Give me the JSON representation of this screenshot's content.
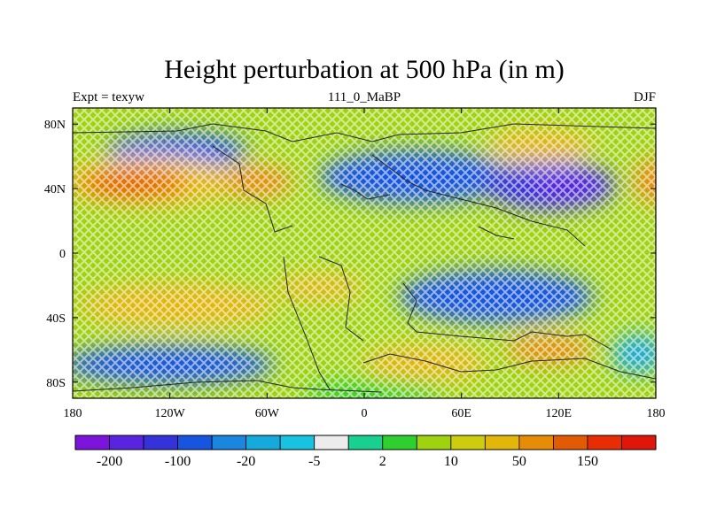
{
  "header": {
    "title": "Height perturbation at 500 hPa (in m)",
    "left_label": "Expt = texyw",
    "center_label": "111_0_MaBP",
    "right_label": "DJF"
  },
  "map": {
    "lon_ticks": [
      "180",
      "120W",
      "60W",
      "0",
      "60E",
      "120E",
      "180"
    ],
    "lat_ticks": [
      "80N",
      "40N",
      "0",
      "40S",
      "80S"
    ],
    "fill_pattern": "diamond-cross-hatch"
  },
  "colorbar": {
    "colors": [
      "#7d14dc",
      "#5a23e0",
      "#3532d9",
      "#1755e0",
      "#1a86e0",
      "#16a9db",
      "#17c3e0",
      "#ececec",
      "#18d090",
      "#2fcf2f",
      "#9fd30f",
      "#cdcd0e",
      "#e3b60a",
      "#e88b07",
      "#e35a05",
      "#e82d05",
      "#e0160b"
    ],
    "labels": [
      "-200",
      "-100",
      "-20",
      "-5",
      "2",
      "10",
      "50",
      "150"
    ]
  }
}
